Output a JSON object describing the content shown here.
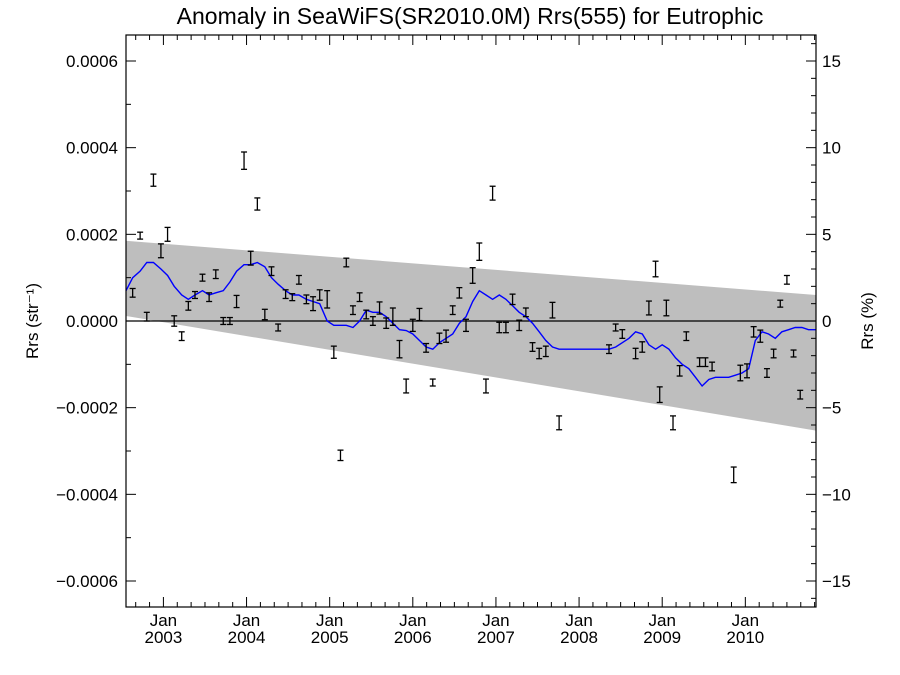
{
  "chart_data": {
    "type": "scatter",
    "title": "Anomaly in SeaWiFS(SR2010.0M) Rrs(555) for Eutrophic",
    "ylabel_left": "Rrs (str⁻¹)",
    "ylabel_right": "Rrs (%)",
    "xlabel": "",
    "xlim": [
      2002.55,
      2010.85
    ],
    "ylim_left": [
      -0.00066,
      0.00066
    ],
    "ylim_right": [
      -16.5,
      16.5
    ],
    "grid": false,
    "x_ticks": [
      {
        "month": "Jan",
        "year": "2003",
        "x": 2003.0
      },
      {
        "month": "Jan",
        "year": "2004",
        "x": 2004.0
      },
      {
        "month": "Jan",
        "year": "2005",
        "x": 2005.0
      },
      {
        "month": "Jan",
        "year": "2006",
        "x": 2006.0
      },
      {
        "month": "Jan",
        "year": "2007",
        "x": 2007.0
      },
      {
        "month": "Jan",
        "year": "2008",
        "x": 2008.0
      },
      {
        "month": "Jan",
        "year": "2009",
        "x": 2009.0
      },
      {
        "month": "Jan",
        "year": "2010",
        "x": 2010.0
      }
    ],
    "y_ticks_left": [
      {
        "label": "0.0006",
        "v": 0.0006
      },
      {
        "label": "0.0004",
        "v": 0.0004
      },
      {
        "label": "0.0002",
        "v": 0.0002
      },
      {
        "label": "0.0000",
        "v": 0.0
      },
      {
        "label": "−0.0002",
        "v": -0.0002
      },
      {
        "label": "−0.0004",
        "v": -0.0004
      },
      {
        "label": "−0.0006",
        "v": -0.0006
      }
    ],
    "y_ticks_right": [
      {
        "label": "15",
        "v": 15
      },
      {
        "label": "10",
        "v": 10
      },
      {
        "label": "5",
        "v": 5
      },
      {
        "label": "0",
        "v": 0
      },
      {
        "label": "−5",
        "v": -5
      },
      {
        "label": "−10",
        "v": -10
      },
      {
        "label": "−15",
        "v": -15
      }
    ],
    "confidence_band": {
      "x": [
        2002.55,
        2010.85
      ],
      "upper": [
        0.000185,
        6e-05
      ],
      "lower": [
        1.15e-05,
        -0.000253
      ]
    },
    "zero_line": 0.0,
    "points": [
      {
        "x": 2002.63,
        "y": 6.5e-05,
        "err": 1e-05
      },
      {
        "x": 2002.72,
        "y": 0.000197,
        "err": 8e-06
      },
      {
        "x": 2002.8,
        "y": 1e-05,
        "err": 1e-05
      },
      {
        "x": 2002.88,
        "y": 0.000325,
        "err": 1.4e-05
      },
      {
        "x": 2002.97,
        "y": 0.000162,
        "err": 1.6e-05
      },
      {
        "x": 2003.05,
        "y": 0.0002,
        "err": 1.6e-05
      },
      {
        "x": 2003.13,
        "y": 0.0,
        "err": 1.2e-05
      },
      {
        "x": 2003.22,
        "y": -3.5e-05,
        "err": 1e-05
      },
      {
        "x": 2003.3,
        "y": 3.5e-05,
        "err": 1e-05
      },
      {
        "x": 2003.38,
        "y": 6e-05,
        "err": 8e-06
      },
      {
        "x": 2003.47,
        "y": 0.0001,
        "err": 8e-06
      },
      {
        "x": 2003.55,
        "y": 5.5e-05,
        "err": 1e-05
      },
      {
        "x": 2003.63,
        "y": 0.000108,
        "err": 1e-05
      },
      {
        "x": 2003.72,
        "y": 0.0,
        "err": 8e-06
      },
      {
        "x": 2003.8,
        "y": 0.0,
        "err": 8e-06
      },
      {
        "x": 2003.88,
        "y": 4.5e-05,
        "err": 1.4e-05
      },
      {
        "x": 2003.97,
        "y": 0.00037,
        "err": 2e-05
      },
      {
        "x": 2004.05,
        "y": 0.000145,
        "err": 1.6e-05
      },
      {
        "x": 2004.13,
        "y": 0.00027,
        "err": 1.4e-05
      },
      {
        "x": 2004.22,
        "y": 1.5e-05,
        "err": 1.2e-05
      },
      {
        "x": 2004.3,
        "y": 0.000115,
        "err": 1e-05
      },
      {
        "x": 2004.38,
        "y": -1.5e-05,
        "err": 8e-06
      },
      {
        "x": 2004.47,
        "y": 6.2e-05,
        "err": 1e-05
      },
      {
        "x": 2004.55,
        "y": 5.5e-05,
        "err": 8e-06
      },
      {
        "x": 2004.63,
        "y": 9.5e-05,
        "err": 1e-05
      },
      {
        "x": 2004.72,
        "y": 5e-05,
        "err": 1e-05
      },
      {
        "x": 2004.8,
        "y": 4e-05,
        "err": 1.6e-05
      },
      {
        "x": 2004.88,
        "y": 6e-05,
        "err": 1.2e-05
      },
      {
        "x": 2004.97,
        "y": 5e-05,
        "err": 2e-05
      },
      {
        "x": 2005.05,
        "y": -7.2e-05,
        "err": 1.4e-05
      },
      {
        "x": 2005.13,
        "y": -0.00031,
        "err": 1.2e-05
      },
      {
        "x": 2005.2,
        "y": 0.000135,
        "err": 1e-05
      },
      {
        "x": 2005.28,
        "y": 2.5e-05,
        "err": 1e-05
      },
      {
        "x": 2005.36,
        "y": 5.5e-05,
        "err": 1e-05
      },
      {
        "x": 2005.44,
        "y": 1.5e-05,
        "err": 1e-05
      },
      {
        "x": 2005.52,
        "y": 0.0,
        "err": 1e-05
      },
      {
        "x": 2005.6,
        "y": 3e-05,
        "err": 1.4e-05
      },
      {
        "x": 2005.68,
        "y": -5e-06,
        "err": 1.2e-05
      },
      {
        "x": 2005.76,
        "y": 1e-05,
        "err": 2e-05
      },
      {
        "x": 2005.84,
        "y": -6.5e-05,
        "err": 2e-05
      },
      {
        "x": 2005.92,
        "y": -0.00015,
        "err": 1.6e-05
      },
      {
        "x": 2006.0,
        "y": -1e-05,
        "err": 1.4e-05
      },
      {
        "x": 2006.08,
        "y": 1.5e-05,
        "err": 1.4e-05
      },
      {
        "x": 2006.16,
        "y": -6.2e-05,
        "err": 1e-05
      },
      {
        "x": 2006.24,
        "y": -0.000142,
        "err": 8e-06
      },
      {
        "x": 2006.32,
        "y": -4e-05,
        "err": 1.2e-05
      },
      {
        "x": 2006.4,
        "y": -3.5e-05,
        "err": 1.4e-05
      },
      {
        "x": 2006.48,
        "y": 2.5e-05,
        "err": 1e-05
      },
      {
        "x": 2006.56,
        "y": 6.5e-05,
        "err": 1.2e-05
      },
      {
        "x": 2006.64,
        "y": -1e-05,
        "err": 1.4e-05
      },
      {
        "x": 2006.72,
        "y": 0.000105,
        "err": 1.8e-05
      },
      {
        "x": 2006.8,
        "y": 0.00016,
        "err": 2e-05
      },
      {
        "x": 2006.88,
        "y": -0.00015,
        "err": 1.6e-05
      },
      {
        "x": 2006.96,
        "y": 0.000295,
        "err": 1.6e-05
      },
      {
        "x": 2007.04,
        "y": -1.5e-05,
        "err": 1.2e-05
      },
      {
        "x": 2007.12,
        "y": -1.5e-05,
        "err": 1.2e-05
      },
      {
        "x": 2007.2,
        "y": 5e-05,
        "err": 1.2e-05
      },
      {
        "x": 2007.28,
        "y": -1e-05,
        "err": 1.2e-05
      },
      {
        "x": 2007.36,
        "y": 2e-05,
        "err": 1e-05
      },
      {
        "x": 2007.44,
        "y": -6e-05,
        "err": 1e-05
      },
      {
        "x": 2007.52,
        "y": -7.5e-05,
        "err": 1.2e-05
      },
      {
        "x": 2007.6,
        "y": -7e-05,
        "err": 1.2e-05
      },
      {
        "x": 2007.68,
        "y": 2.5e-05,
        "err": 1.8e-05
      },
      {
        "x": 2007.76,
        "y": -0.000235,
        "err": 1.6e-05
      },
      {
        "x": 2008.36,
        "y": -6.5e-05,
        "err": 1e-05
      },
      {
        "x": 2008.44,
        "y": -1.5e-05,
        "err": 8e-06
      },
      {
        "x": 2008.52,
        "y": -3e-05,
        "err": 1e-05
      },
      {
        "x": 2008.68,
        "y": -7.5e-05,
        "err": 1.2e-05
      },
      {
        "x": 2008.76,
        "y": -6e-05,
        "err": 1.2e-05
      },
      {
        "x": 2008.84,
        "y": 3e-05,
        "err": 1.6e-05
      },
      {
        "x": 2008.92,
        "y": 0.00012,
        "err": 1.8e-05
      },
      {
        "x": 2008.97,
        "y": -0.00017,
        "err": 1.8e-05
      },
      {
        "x": 2009.05,
        "y": 3e-05,
        "err": 1.8e-05
      },
      {
        "x": 2009.13,
        "y": -0.000235,
        "err": 1.6e-05
      },
      {
        "x": 2009.21,
        "y": -0.000115,
        "err": 1.2e-05
      },
      {
        "x": 2009.29,
        "y": -3.5e-05,
        "err": 1e-05
      },
      {
        "x": 2009.45,
        "y": -9.5e-05,
        "err": 1e-05
      },
      {
        "x": 2009.52,
        "y": -9.5e-05,
        "err": 1e-05
      },
      {
        "x": 2009.6,
        "y": -0.000105,
        "err": 1e-05
      },
      {
        "x": 2009.86,
        "y": -0.000355,
        "err": 1.8e-05
      },
      {
        "x": 2009.94,
        "y": -0.00012,
        "err": 1.8e-05
      },
      {
        "x": 2010.02,
        "y": -0.000115,
        "err": 1.6e-05
      },
      {
        "x": 2010.1,
        "y": -2.5e-05,
        "err": 1.2e-05
      },
      {
        "x": 2010.18,
        "y": -3.5e-05,
        "err": 1.4e-05
      },
      {
        "x": 2010.26,
        "y": -0.00012,
        "err": 1e-05
      },
      {
        "x": 2010.34,
        "y": -7.5e-05,
        "err": 1e-05
      },
      {
        "x": 2010.42,
        "y": 4e-05,
        "err": 8e-06
      },
      {
        "x": 2010.5,
        "y": 9.5e-05,
        "err": 1e-05
      },
      {
        "x": 2010.58,
        "y": -7.5e-05,
        "err": 8e-06
      },
      {
        "x": 2010.66,
        "y": -0.00017,
        "err": 1e-05
      }
    ],
    "running_mean": {
      "color": "#0000ff",
      "x": [
        2002.55,
        2002.63,
        2002.72,
        2002.8,
        2002.88,
        2002.97,
        2003.05,
        2003.13,
        2003.22,
        2003.3,
        2003.38,
        2003.47,
        2003.55,
        2003.63,
        2003.72,
        2003.8,
        2003.88,
        2003.97,
        2004.05,
        2004.13,
        2004.22,
        2004.3,
        2004.38,
        2004.47,
        2004.55,
        2004.63,
        2004.72,
        2004.8,
        2004.88,
        2004.97,
        2005.05,
        2005.13,
        2005.2,
        2005.28,
        2005.36,
        2005.44,
        2005.52,
        2005.6,
        2005.68,
        2005.76,
        2005.84,
        2005.92,
        2006.0,
        2006.08,
        2006.16,
        2006.24,
        2006.32,
        2006.4,
        2006.48,
        2006.56,
        2006.64,
        2006.72,
        2006.8,
        2006.88,
        2006.96,
        2007.04,
        2007.12,
        2007.2,
        2007.28,
        2007.36,
        2007.44,
        2007.52,
        2007.6,
        2007.68,
        2007.76,
        2008.36,
        2008.44,
        2008.52,
        2008.6,
        2008.68,
        2008.76,
        2008.84,
        2008.92,
        2009.0,
        2009.08,
        2009.16,
        2009.24,
        2009.32,
        2009.4,
        2009.48,
        2009.56,
        2009.64,
        2009.72,
        2009.8,
        2009.88,
        2009.96,
        2010.04,
        2010.12,
        2010.2,
        2010.28,
        2010.36,
        2010.44,
        2010.52,
        2010.6,
        2010.68,
        2010.76,
        2010.85
      ],
      "y": [
        7e-05,
        0.0001,
        0.000115,
        0.000135,
        0.000135,
        0.00012,
        0.000105,
        8e-05,
        6e-05,
        5e-05,
        6e-05,
        7e-05,
        6e-05,
        6.5e-05,
        7e-05,
        9e-05,
        0.000115,
        0.00013,
        0.00013,
        0.000135,
        0.000125,
        0.0001,
        8.5e-05,
        7e-05,
        6e-05,
        6e-05,
        5e-05,
        4.5e-05,
        4e-05,
        0.0,
        -1e-05,
        -1e-05,
        -1e-05,
        -1.5e-05,
        0.0,
        2.5e-05,
        2e-05,
        2e-05,
        1e-05,
        -5e-06,
        -2e-05,
        -2.2e-05,
        -3e-05,
        -4.5e-05,
        -6e-05,
        -6.5e-05,
        -5e-05,
        -4e-05,
        -3e-05,
        -5e-06,
        1e-05,
        4.5e-05,
        7e-05,
        6e-05,
        5e-05,
        6e-05,
        5e-05,
        3.5e-05,
        2e-05,
        1e-05,
        -5e-06,
        -2.5e-05,
        -4.5e-05,
        -6e-05,
        -6.5e-05,
        -6.5e-05,
        -6e-05,
        -5e-05,
        -4e-05,
        -2.5e-05,
        -3e-05,
        -5.5e-05,
        -6.5e-05,
        -5.5e-05,
        -6.5e-05,
        -8.5e-05,
        -0.0001,
        -0.00011,
        -0.00013,
        -0.00015,
        -0.000135,
        -0.00013,
        -0.00013,
        -0.00013,
        -0.000125,
        -0.00012,
        -0.00011,
        -4.5e-05,
        -2.5e-05,
        -3e-05,
        -4e-05,
        -2.5e-05,
        -2e-05,
        -1.5e-05,
        -1.5e-05,
        -2e-05,
        -2e-05
      ]
    }
  }
}
